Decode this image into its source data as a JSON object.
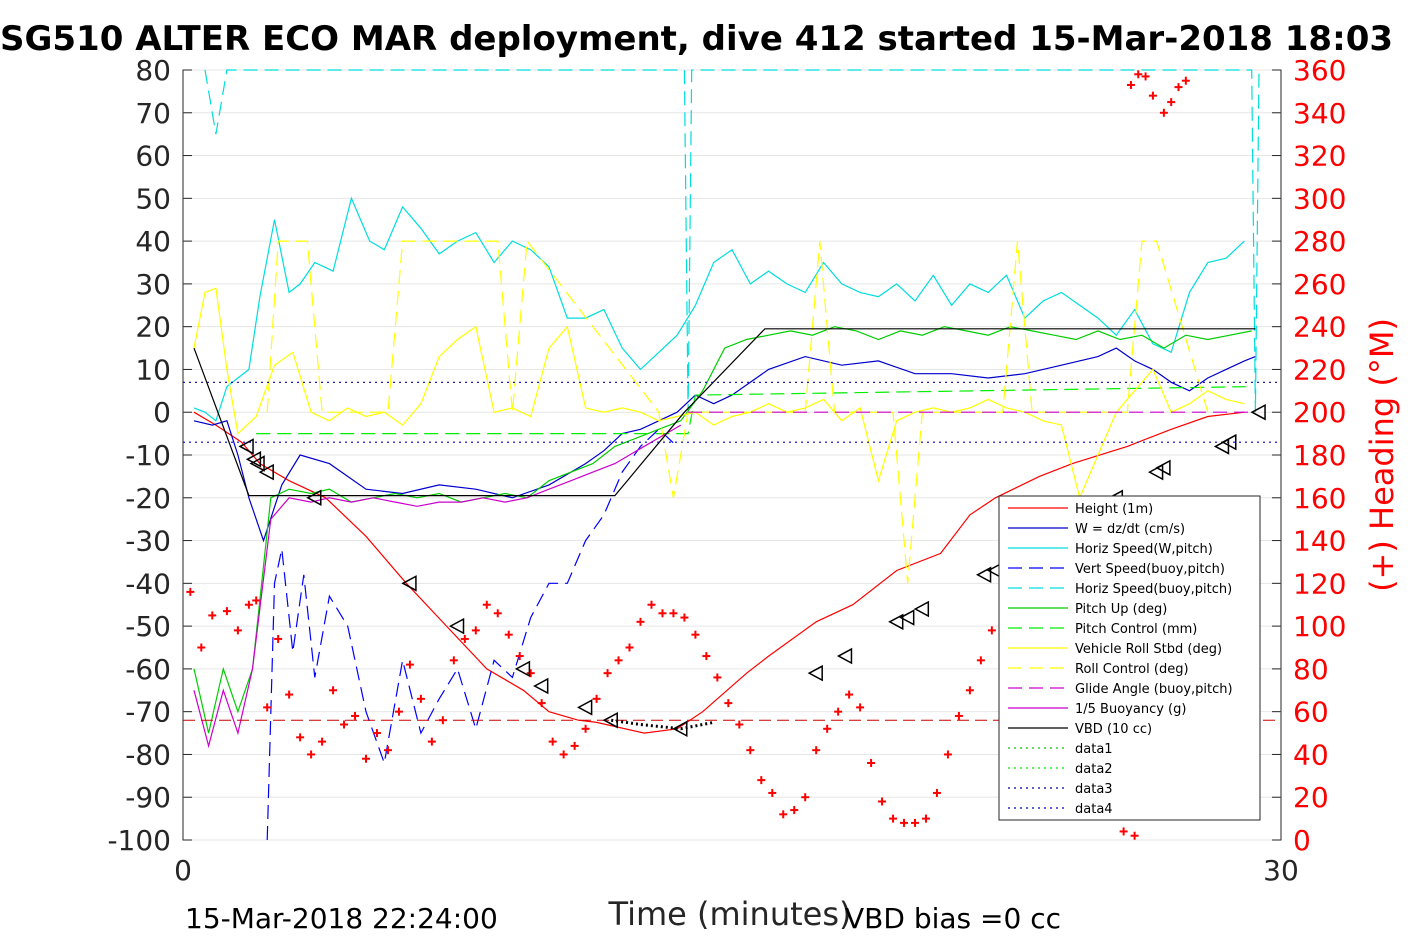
{
  "title": "SG510 ALTER ECO MAR deployment, dive 412 started 15-Mar-2018 18:03",
  "footer": {
    "date_label": "15-Mar-2018 22:24:00",
    "vbd_label": "VBD bias =0 cc"
  },
  "colors": {
    "height": "#ff0000",
    "w": "#0000cc",
    "horiz_speed_w": "#00dddd",
    "vert_speed_buoy": "#0000ff",
    "horiz_speed_buoy": "#00dddd",
    "pitch_up": "#00cc00",
    "pitch_control": "#00ee00",
    "roll": "#ffff00",
    "roll_control": "#ffff00",
    "glide_angle": "#cc00cc",
    "buoyancy": "#cc00cc",
    "vbd": "#000000",
    "heading": "#ff0000",
    "data1": "#00cc00",
    "data3": "#0000aa"
  },
  "chart_data": {
    "type": "line",
    "title": "SG510 ALTER ECO MAR deployment, dive 412 started 15-Mar-2018 18:03",
    "xlabel": "Time (minutes)",
    "ylabel": "",
    "ylabel_right": "(+) Heading (°M)",
    "xlim": [
      0,
      30
    ],
    "ylim": [
      -100,
      80
    ],
    "ylim_right": [
      0,
      360
    ],
    "xticks": [
      "0",
      "30"
    ],
    "yticks": [
      "80",
      "70",
      "60",
      "50",
      "40",
      "30",
      "20",
      "10",
      "0",
      "-10",
      "-20",
      "-30",
      "-40",
      "-50",
      "-60",
      "-70",
      "-80",
      "-90",
      "-100"
    ],
    "yticks_right": [
      "360",
      "340",
      "320",
      "300",
      "280",
      "260",
      "240",
      "220",
      "200",
      "180",
      "160",
      "140",
      "120",
      "100",
      "80",
      "60",
      "40",
      "20",
      "0"
    ],
    "grid": true,
    "legend_position": "lower-right",
    "series": [
      {
        "name": "Height (1m)",
        "style": "solid",
        "color": "#ff0000",
        "x": [
          0.3,
          0.9,
          1.6,
          2.1,
          2.9,
          3.9,
          5.0,
          6.1,
          7.2,
          8.3,
          9.3,
          10.0,
          10.8,
          11.3,
          12.6,
          13.5,
          14.2,
          15.4,
          16.0,
          17.3,
          18.3,
          19.5,
          20.7,
          21.5,
          22.2,
          23.4,
          24.3,
          25.8,
          27.0,
          28.0,
          29.0
        ],
        "y": [
          0,
          -3,
          -7,
          -12,
          -16,
          -20,
          -29,
          -40,
          -50,
          -60,
          -65,
          -70,
          -72,
          -72.5,
          -75,
          -74,
          -70,
          -61,
          -57,
          -49,
          -45,
          -37,
          -33,
          -24,
          -20,
          -15,
          -12,
          -8,
          -4,
          -1,
          0
        ]
      },
      {
        "name": "W = dz/dt (cm/s)",
        "style": "solid",
        "color": "#0000cc",
        "x": [
          0.3,
          0.8,
          1.2,
          1.5,
          1.8,
          2.2,
          2.7,
          3.2,
          4.0,
          5.0,
          6.0,
          7.0,
          8.0,
          9.0,
          10.0,
          11.0,
          11.5,
          12.0,
          12.5,
          13.0,
          13.5,
          14.0,
          14.5,
          15.0,
          15.5,
          16.0,
          17.0,
          18.0,
          19.0,
          20.0,
          21.0,
          22.0,
          23.0,
          24.0,
          25.0,
          25.5,
          26.0,
          26.5,
          27.0,
          27.5,
          28.0,
          28.5,
          29.0,
          29.3
        ],
        "y": [
          -2,
          -3,
          -2,
          -10,
          -20,
          -30,
          -17,
          -10,
          -12,
          -18,
          -19,
          -17,
          -18,
          -20,
          -17,
          -12,
          -9,
          -5,
          -4,
          -2,
          0,
          4,
          2,
          4,
          7,
          10,
          13,
          11,
          12,
          9,
          9,
          8,
          9,
          11,
          13,
          15,
          12,
          10,
          7,
          5,
          8,
          10,
          12,
          13
        ]
      },
      {
        "name": "Horiz Speed(W,pitch)",
        "style": "solid",
        "color": "#00dddd",
        "x": [
          0.3,
          0.6,
          0.9,
          1.2,
          1.5,
          1.8,
          2.1,
          2.5,
          2.9,
          3.2,
          3.6,
          4.1,
          4.6,
          5.1,
          5.5,
          6.0,
          6.5,
          7.0,
          7.5,
          8.0,
          8.5,
          9.0,
          9.5,
          10.0,
          10.5,
          11.0,
          11.5,
          12.0,
          12.5,
          13.0,
          13.5,
          14.0,
          14.5,
          15.0,
          15.5,
          16.0,
          16.5,
          17.0,
          17.5,
          18.0,
          18.5,
          19.0,
          19.5,
          20.0,
          20.5,
          21.0,
          21.5,
          22.0,
          22.5,
          23.0,
          23.5,
          24.0,
          24.5,
          25.0,
          25.5,
          26.0,
          26.5,
          27.0,
          27.5,
          28.0,
          28.5,
          29.0
        ],
        "y": [
          1,
          0,
          -2,
          6,
          8,
          10,
          27,
          45,
          28,
          30,
          35,
          33,
          50,
          40,
          38,
          48,
          43,
          37,
          40,
          42,
          35,
          40,
          38,
          34,
          22,
          22,
          24,
          15,
          10,
          14,
          18,
          25,
          35,
          38,
          30,
          33,
          30,
          28,
          35,
          30,
          28,
          27,
          30,
          26,
          32,
          25,
          30,
          28,
          32,
          22,
          26,
          28,
          25,
          22,
          18,
          24,
          16,
          14,
          28,
          35,
          36,
          40
        ]
      },
      {
        "name": "Vert Speed(buoy,pitch)",
        "style": "dashed",
        "color": "#0000ff",
        "x": [
          2.3,
          2.5,
          2.7,
          3.0,
          3.3,
          3.6,
          4.0,
          4.5,
          5.0,
          5.5,
          6.0,
          6.5,
          7.0,
          7.5,
          8.0,
          8.5,
          9.0,
          9.5,
          10.0,
          10.5,
          11.0,
          11.5,
          12.0,
          12.5,
          13.0,
          13.5
        ],
        "y": [
          -100,
          -40,
          -32,
          -56,
          -38,
          -62,
          -43,
          -50,
          -70,
          -82,
          -58,
          -75,
          -67,
          -60,
          -74,
          -58,
          -62,
          -48,
          -40,
          -40,
          -30,
          -24,
          -14,
          -8,
          -4,
          -8
        ]
      },
      {
        "name": "Horiz Speed(buoy,pitch)",
        "style": "dashed",
        "color": "#00dddd",
        "x": [
          0.6,
          0.9,
          1.2,
          13.7,
          13.8,
          13.9,
          29.2,
          29.3,
          29.4
        ],
        "y": [
          80,
          65,
          80,
          80,
          0,
          80,
          80,
          0,
          80
        ]
      },
      {
        "name": "Pitch Up (deg)",
        "style": "solid",
        "color": "#00cc00",
        "x": [
          0.3,
          0.7,
          1.1,
          1.5,
          1.9,
          2.4,
          2.9,
          3.5,
          4.0,
          4.6,
          5.2,
          5.8,
          6.4,
          7.0,
          7.6,
          8.2,
          8.8,
          9.4,
          10.0,
          10.6,
          11.2,
          11.8,
          12.4,
          13.0,
          13.6,
          14.2,
          14.8,
          15.4,
          16.0,
          16.6,
          17.2,
          17.8,
          18.4,
          19.0,
          19.6,
          20.2,
          20.8,
          21.4,
          22.0,
          22.6,
          23.2,
          23.8,
          24.4,
          25.0,
          25.6,
          26.2,
          26.8,
          27.4,
          28.0,
          28.6,
          29.2
        ],
        "y": [
          -60,
          -75,
          -60,
          -70,
          -60,
          -20,
          -18,
          -19,
          -18,
          -21,
          -20,
          -19,
          -20,
          -19,
          -21,
          -20,
          -19,
          -20,
          -16,
          -14,
          -12,
          -8,
          -6,
          -4,
          -2,
          5,
          15,
          17,
          18,
          19,
          18,
          20,
          19,
          17,
          19,
          18,
          20,
          19,
          18,
          20,
          19,
          18,
          17,
          19,
          17,
          18,
          15,
          18,
          17,
          18,
          19
        ]
      },
      {
        "name": "Pitch Control (mm)",
        "style": "dashed",
        "color": "#00ee00",
        "x": [
          2.0,
          13.8,
          14.0,
          29.2
        ],
        "y": [
          -5,
          -5,
          4,
          6
        ]
      },
      {
        "name": "Vehicle Roll Stbd (deg)",
        "style": "solid",
        "color": "#ffff00",
        "x": [
          0.3,
          0.6,
          0.9,
          1.2,
          1.5,
          2.0,
          2.5,
          3.0,
          3.5,
          4.0,
          4.5,
          5.0,
          5.5,
          6.0,
          6.5,
          7.0,
          7.5,
          8.0,
          8.5,
          9.0,
          9.5,
          10.0,
          10.5,
          11.0,
          11.5,
          12.0,
          12.5,
          13.0,
          13.5,
          14.0,
          14.5,
          15.0,
          15.5,
          16.0,
          16.5,
          17.0,
          17.5,
          18.0,
          18.5,
          19.0,
          19.5,
          20.0,
          20.5,
          21.0,
          21.5,
          22.0,
          22.5,
          23.0,
          23.5,
          24.0,
          24.5,
          25.0,
          25.5,
          26.0,
          26.5,
          27.0,
          27.5,
          28.0,
          28.5,
          29.0
        ],
        "y": [
          15,
          28,
          29,
          10,
          -5,
          -1,
          11,
          14,
          0,
          -2,
          1,
          -1,
          0,
          -3,
          2,
          13,
          17,
          20,
          0,
          1,
          -1,
          15,
          20,
          1,
          0,
          1,
          0,
          -2,
          -1,
          0,
          -3,
          -1,
          0,
          2,
          0,
          1,
          3,
          -2,
          1,
          -16,
          -2,
          0,
          1,
          0,
          1,
          3,
          1,
          0,
          -2,
          -3,
          -20,
          -10,
          0,
          5,
          10,
          0,
          2,
          5,
          3,
          2
        ]
      },
      {
        "name": "Roll Control (deg)",
        "style": "dashed",
        "color": "#ffff00",
        "x": [
          2.3,
          2.6,
          3.0,
          3.4,
          3.8,
          5.6,
          6.0,
          6.4,
          8.6,
          9.0,
          9.4,
          13.0,
          13.4,
          13.8,
          17.0,
          17.4,
          17.8,
          19.4,
          19.8,
          20.2,
          22.4,
          22.8,
          23.2,
          25.8,
          26.2,
          26.6,
          28.0
        ],
        "y": [
          0,
          40,
          40,
          40,
          0,
          0,
          40,
          40,
          40,
          0,
          40,
          0,
          -20,
          0,
          0,
          40,
          0,
          0,
          -40,
          0,
          0,
          40,
          0,
          0,
          40,
          40,
          0
        ]
      },
      {
        "name": "Glide Angle (buoy,pitch)",
        "style": "dashed",
        "color": "#cc00cc",
        "x": [
          13.8,
          14.0,
          29.2
        ],
        "y": [
          0,
          0,
          0
        ]
      },
      {
        "name": "1/5 Buoyancy (g)",
        "style": "solid",
        "color": "#cc00cc",
        "x": [
          0.3,
          0.7,
          1.1,
          1.5,
          1.9,
          2.4,
          2.9,
          3.5,
          4.0,
          4.6,
          5.2,
          5.8,
          6.4,
          7.0,
          7.6,
          8.2,
          8.8,
          9.4,
          10.0,
          10.6,
          11.2,
          11.8,
          12.4,
          13.0,
          13.6
        ],
        "y": [
          -65,
          -78,
          -65,
          -75,
          -60,
          -25,
          -20,
          -21,
          -20,
          -21,
          -20,
          -21,
          -22,
          -21,
          -21,
          -20,
          -21,
          -20,
          -18,
          -16,
          -14,
          -12,
          -9,
          -6,
          -3
        ]
      },
      {
        "name": "VBD (10 cc)",
        "style": "solid",
        "color": "#000000",
        "x": [
          0.3,
          1.8,
          11.8,
          13.7,
          15.9,
          20.0,
          29.3
        ],
        "y": [
          15,
          -19.5,
          -19.5,
          0,
          19.5,
          19.5,
          19.5
        ]
      },
      {
        "name": "data1",
        "style": "dotted",
        "color": "#00cc00",
        "x": [],
        "y": []
      },
      {
        "name": "data2",
        "style": "dotted",
        "color": "#00ee00",
        "x": [],
        "y": []
      },
      {
        "name": "data3",
        "style": "dotted",
        "color": "#0000aa",
        "x": [
          0,
          30
        ],
        "y": [
          7,
          7
        ]
      },
      {
        "name": "data4",
        "style": "dotted",
        "color": "#0000cc",
        "x": [
          0,
          30
        ],
        "y": [
          -7,
          -7
        ]
      }
    ],
    "reference_lines": [
      {
        "y": -72,
        "style": "dashed",
        "color": "#cc0000"
      }
    ],
    "triangles": {
      "x": [
        1.75,
        1.95,
        2.05,
        2.3,
        3.6,
        6.2,
        7.5,
        9.3,
        9.8,
        11.0,
        11.7,
        13.6,
        17.3,
        18.1,
        19.5,
        19.8,
        20.2,
        21.9,
        22.2,
        22.8,
        23.8,
        24.0,
        25.3,
        25.5,
        26.6,
        26.8,
        28.4,
        28.6,
        29.4
      ],
      "y": [
        -8,
        -11,
        -12,
        -14,
        -20,
        -40,
        -50,
        -60,
        -64,
        -69,
        -72,
        -74,
        -61,
        -57,
        -49,
        -48,
        -46,
        -38,
        -37,
        -34,
        -25,
        -23,
        -21,
        -20,
        -14,
        -13,
        -8,
        -7,
        0
      ]
    },
    "heading_points": {
      "x": [
        0.2,
        0.5,
        0.8,
        1.2,
        1.5,
        1.8,
        2.0,
        2.3,
        2.6,
        2.9,
        3.2,
        3.5,
        3.8,
        4.1,
        4.4,
        4.7,
        5.0,
        5.3,
        5.6,
        5.9,
        6.2,
        6.5,
        6.8,
        7.1,
        7.4,
        7.7,
        8.0,
        8.3,
        8.6,
        8.9,
        9.2,
        9.5,
        9.8,
        10.1,
        10.4,
        10.7,
        11.0,
        11.3,
        11.6,
        11.9,
        12.2,
        12.5,
        12.8,
        13.1,
        13.4,
        13.7,
        14.0,
        14.3,
        14.6,
        14.9,
        15.2,
        15.5,
        15.8,
        16.1,
        16.4,
        16.7,
        17.0,
        17.3,
        17.6,
        17.9,
        18.2,
        18.5,
        18.8,
        19.1,
        19.4,
        19.7,
        20.0,
        20.3,
        20.6,
        20.9,
        21.2,
        21.5,
        21.8,
        22.1,
        22.4,
        22.7,
        23.0,
        23.3,
        23.6,
        23.9,
        24.2,
        24.5,
        24.8,
        25.1,
        25.4,
        25.7,
        26.0,
        26.3,
        26.6,
        26.9,
        27.2,
        27.5
      ],
      "y": [
        116,
        90,
        105,
        107,
        98,
        110,
        112,
        62,
        94,
        68,
        48,
        40,
        46,
        70,
        54,
        58,
        38,
        50,
        42,
        60,
        82,
        66,
        46,
        56,
        84,
        94,
        98,
        110,
        106,
        96,
        86,
        78,
        64,
        46,
        40,
        44,
        52,
        66,
        78,
        84,
        90,
        102,
        110,
        106,
        106,
        104,
        96,
        86,
        76,
        64,
        54,
        42,
        28,
        22,
        12,
        14,
        20,
        42,
        52,
        60,
        68,
        62,
        36,
        18,
        10,
        8,
        8,
        10,
        22,
        40,
        58,
        70,
        84,
        98,
        104,
        100,
        108,
        104,
        118,
        82,
        66,
        44,
        34,
        24,
        16,
        4,
        2,
        12,
        18,
        24,
        30,
        36
      ]
    },
    "heading_points_top": {
      "x": [
        25.9,
        26.1,
        26.3,
        26.5,
        26.8,
        27.0,
        27.2,
        27.4
      ],
      "y": [
        353,
        358,
        357,
        348,
        340,
        345,
        352,
        355
      ]
    }
  }
}
